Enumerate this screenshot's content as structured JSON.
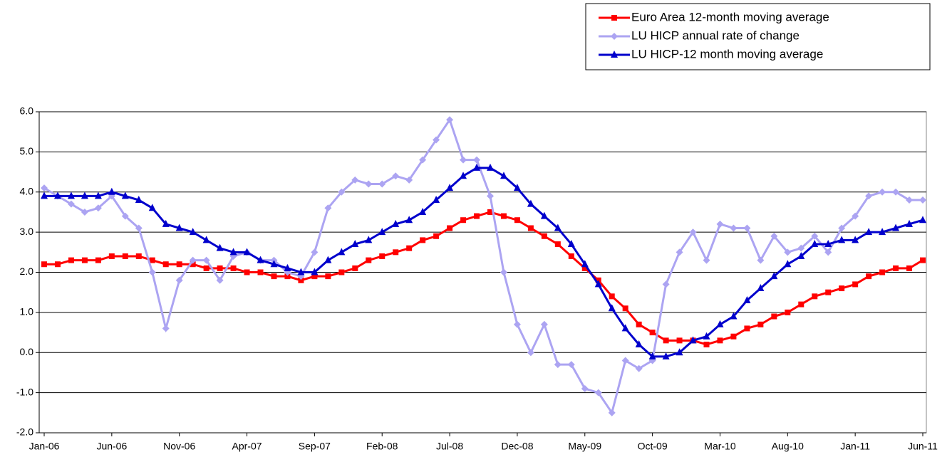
{
  "chart_data": {
    "type": "line",
    "categories": [
      "Jan-06",
      null,
      null,
      null,
      null,
      "Jun-06",
      null,
      null,
      null,
      null,
      "Nov-06",
      null,
      null,
      null,
      null,
      "Apr-07",
      null,
      null,
      null,
      null,
      "Sep-07",
      null,
      null,
      null,
      null,
      "Feb-08",
      null,
      null,
      null,
      null,
      "Jul-08",
      null,
      null,
      null,
      null,
      "Dec-08",
      null,
      null,
      null,
      null,
      "May-09",
      null,
      null,
      null,
      null,
      "Oct-09",
      null,
      null,
      null,
      null,
      "Mar-10",
      null,
      null,
      null,
      null,
      "Aug-10",
      null,
      null,
      null,
      null,
      "Jan-11",
      null,
      null,
      null,
      null,
      "Jun-11"
    ],
    "series": [
      {
        "name": "Euro Area 12-month moving average",
        "color": "#ff0000",
        "marker": "square",
        "values": [
          2.2,
          2.2,
          2.3,
          2.3,
          2.3,
          2.4,
          2.4,
          2.4,
          2.3,
          2.2,
          2.2,
          2.2,
          2.1,
          2.1,
          2.1,
          2.0,
          2.0,
          1.9,
          1.9,
          1.8,
          1.9,
          1.9,
          2.0,
          2.1,
          2.3,
          2.4,
          2.5,
          2.6,
          2.8,
          2.9,
          3.1,
          3.3,
          3.4,
          3.5,
          3.4,
          3.3,
          3.1,
          2.9,
          2.7,
          2.4,
          2.1,
          1.8,
          1.4,
          1.1,
          0.7,
          0.5,
          0.3,
          0.3,
          0.3,
          0.2,
          0.3,
          0.4,
          0.6,
          0.7,
          0.9,
          1.0,
          1.2,
          1.4,
          1.5,
          1.6,
          1.7,
          1.9,
          2.0,
          2.1,
          2.1,
          2.3
        ]
      },
      {
        "name": "LU HICP annual rate of change",
        "color": "#aca4f2",
        "marker": "diamond",
        "values": [
          4.1,
          3.9,
          3.7,
          3.5,
          3.6,
          3.9,
          3.4,
          3.1,
          2.0,
          0.6,
          1.8,
          2.3,
          2.3,
          1.8,
          2.4,
          2.5,
          2.3,
          2.3,
          2.0,
          1.9,
          2.5,
          3.6,
          4.0,
          4.3,
          4.2,
          4.2,
          4.4,
          4.3,
          4.8,
          5.3,
          5.8,
          4.8,
          4.8,
          3.9,
          2.0,
          0.7,
          0.0,
          0.7,
          -0.3,
          -0.3,
          -0.9,
          -1.0,
          -1.5,
          -0.2,
          -0.4,
          -0.2,
          1.7,
          2.5,
          3.0,
          2.3,
          3.2,
          3.1,
          3.1,
          2.3,
          2.9,
          2.5,
          2.6,
          2.9,
          2.5,
          3.1,
          3.4,
          3.9,
          4.0,
          4.0,
          3.8,
          3.8
        ]
      },
      {
        "name": "LU HICP-12 month moving average",
        "color": "#0000cc",
        "marker": "triangle",
        "values": [
          3.9,
          3.9,
          3.9,
          3.9,
          3.9,
          4.0,
          3.9,
          3.8,
          3.6,
          3.2,
          3.1,
          3.0,
          2.8,
          2.6,
          2.5,
          2.5,
          2.3,
          2.2,
          2.1,
          2.0,
          2.0,
          2.3,
          2.5,
          2.7,
          2.8,
          3.0,
          3.2,
          3.3,
          3.5,
          3.8,
          4.1,
          4.4,
          4.6,
          4.6,
          4.4,
          4.1,
          3.7,
          3.4,
          3.1,
          2.7,
          2.2,
          1.7,
          1.1,
          0.6,
          0.2,
          -0.1,
          -0.1,
          0.0,
          0.3,
          0.4,
          0.7,
          0.9,
          1.3,
          1.6,
          1.9,
          2.2,
          2.4,
          2.7,
          2.7,
          2.8,
          2.8,
          3.0,
          3.0,
          3.1,
          3.2,
          3.3
        ]
      }
    ],
    "ylim": [
      -2,
      6
    ],
    "yticks": [
      {
        "value": -2,
        "label": "-2.0"
      },
      {
        "value": -1,
        "label": "-1.0"
      },
      {
        "value": 0,
        "label": "0.0"
      },
      {
        "value": 1,
        "label": "1.0"
      },
      {
        "value": 2,
        "label": "2.0"
      },
      {
        "value": 3,
        "label": "3.0"
      },
      {
        "value": 4,
        "label": "4.0"
      },
      {
        "value": 5,
        "label": "5.0"
      },
      {
        "value": 6,
        "label": "6.0"
      }
    ],
    "grid": true,
    "legend": "top-right"
  }
}
